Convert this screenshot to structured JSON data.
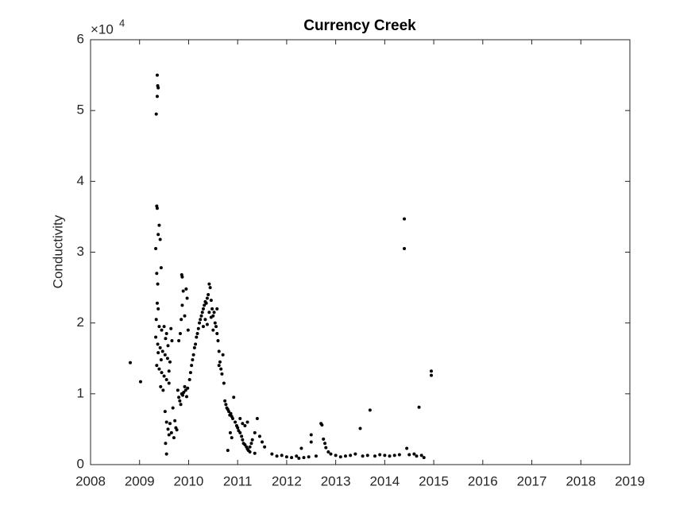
{
  "chart_data": {
    "type": "scatter",
    "title": "Currency Creek",
    "ylabel": "Conductivity",
    "y_exponent": {
      "base": "×10",
      "power": "4"
    },
    "color": "#000000",
    "xlim": [
      2008,
      2019
    ],
    "xticks": [
      2008,
      2009,
      2010,
      2011,
      2012,
      2013,
      2014,
      2015,
      2016,
      2017,
      2018,
      2019
    ],
    "ylim": [
      0,
      60000
    ],
    "yticks": [
      {
        "value": 0,
        "label": "0"
      },
      {
        "value": 10000,
        "label": "1"
      },
      {
        "value": 20000,
        "label": "2"
      },
      {
        "value": 30000,
        "label": "3"
      },
      {
        "value": 40000,
        "label": "4"
      },
      {
        "value": 50000,
        "label": "5"
      },
      {
        "value": 60000,
        "label": "6"
      }
    ],
    "x": [
      2008.81,
      2009.02,
      2009.36,
      2009.37,
      2009.38,
      2009.36,
      2009.34,
      2009.35,
      2009.36,
      2009.4,
      2009.38,
      2009.42,
      2009.33,
      2009.44,
      2009.35,
      2009.37,
      2009.36,
      2009.38,
      2009.34,
      2009.4,
      2009.45,
      2009.5,
      2009.55,
      2009.33,
      2009.37,
      2009.42,
      2009.47,
      2009.52,
      2009.57,
      2009.62,
      2009.35,
      2009.4,
      2009.45,
      2009.5,
      2009.55,
      2009.6,
      2009.43,
      2009.48,
      2009.38,
      2009.58,
      2009.64,
      2009.66,
      2009.53,
      2009.6,
      2009.44,
      2009.52,
      2009.55,
      2009.58,
      2009.6,
      2009.53,
      2009.55,
      2009.62,
      2009.65,
      2009.7,
      2009.72,
      2009.74,
      2009.76,
      2009.68,
      2009.78,
      2009.8,
      2009.82,
      2009.84,
      2009.86,
      2009.88,
      2009.9,
      2009.92,
      2009.94,
      2009.96,
      2009.98,
      2009.8,
      2009.83,
      2009.85,
      2009.87,
      2009.89,
      2009.86,
      2009.87,
      2009.95,
      2009.97,
      2009.92,
      2009.99,
      2010.02,
      2010.04,
      2010.06,
      2010.08,
      2010.1,
      2010.12,
      2010.14,
      2010.16,
      2010.18,
      2010.2,
      2010.22,
      2010.24,
      2010.26,
      2010.28,
      2010.3,
      2010.32,
      2010.34,
      2010.36,
      2010.38,
      2010.4,
      2010.42,
      2010.44,
      2010.46,
      2010.48,
      2010.5,
      2010.3,
      2010.34,
      2010.38,
      2010.42,
      2010.46,
      2010.5,
      2010.52,
      2010.54,
      2010.56,
      2010.58,
      2010.6,
      2010.62,
      2010.64,
      2010.66,
      2010.68,
      2010.58,
      2010.62,
      2010.7,
      2010.72,
      2010.74,
      2010.76,
      2010.78,
      2010.8,
      2010.82,
      2010.84,
      2010.86,
      2010.88,
      2010.9,
      2010.92,
      2010.95,
      2010.98,
      2010.85,
      2010.88,
      2010.8,
      2011.0,
      2011.02,
      2011.05,
      2011.08,
      2011.1,
      2011.12,
      2011.15,
      2011.18,
      2011.2,
      2011.22,
      2011.25,
      2011.28,
      2011.3,
      2011.05,
      2011.1,
      2011.15,
      2011.2,
      2011.35,
      2011.4,
      2011.45,
      2011.5,
      2011.25,
      2011.35,
      2011.55,
      2011.7,
      2011.8,
      2011.9,
      2012.0,
      2012.1,
      2012.2,
      2012.25,
      2012.35,
      2012.3,
      2012.45,
      2012.5,
      2012.5,
      2012.6,
      2012.7,
      2012.72,
      2012.75,
      2012.78,
      2012.8,
      2012.85,
      2012.9,
      2013.0,
      2013.1,
      2013.2,
      2013.3,
      2013.4,
      2013.5,
      2013.55,
      2013.65,
      2013.7,
      2013.8,
      2013.9,
      2014.0,
      2014.1,
      2014.2,
      2014.3,
      2014.4,
      2014.4,
      2014.45,
      2014.5,
      2014.6,
      2014.65,
      2014.7,
      2014.75,
      2014.8,
      2014.95,
      2014.95
    ],
    "values": [
      14400,
      11700,
      55000,
      53500,
      53200,
      52000,
      49500,
      36500,
      36200,
      33800,
      32500,
      31800,
      30500,
      27800,
      27000,
      25500,
      22800,
      22000,
      20500,
      19500,
      19000,
      19500,
      18500,
      18000,
      17000,
      16500,
      16000,
      15500,
      15000,
      14500,
      14000,
      13500,
      13000,
      12500,
      12000,
      11500,
      11000,
      10500,
      15800,
      16800,
      19200,
      17500,
      17800,
      13200,
      14800,
      7500,
      6000,
      5000,
      4200,
      3000,
      1500,
      5800,
      4500,
      3800,
      6200,
      5200,
      4900,
      8000,
      10500,
      9500,
      9000,
      8500,
      10000,
      9800,
      10200,
      11000,
      10500,
      9600,
      10800,
      17500,
      18500,
      20500,
      22500,
      24500,
      26800,
      26500,
      24800,
      23500,
      21000,
      19000,
      12000,
      13000,
      14000,
      14800,
      15500,
      16500,
      17000,
      18000,
      18500,
      19200,
      20000,
      20500,
      21000,
      21500,
      22000,
      22500,
      23000,
      22800,
      23500,
      24000,
      25500,
      25000,
      23200,
      22000,
      21000,
      19500,
      20500,
      19800,
      21500,
      20800,
      19000,
      21500,
      20000,
      19500,
      18500,
      17500,
      16000,
      14500,
      13500,
      12800,
      22000,
      14000,
      15500,
      11500,
      9000,
      8500,
      8000,
      7800,
      7500,
      7000,
      7200,
      6800,
      6500,
      9500,
      6000,
      5500,
      4500,
      3800,
      2000,
      5200,
      4800,
      4500,
      4000,
      3500,
      3000,
      2800,
      2500,
      2200,
      2000,
      2500,
      3000,
      3500,
      6500,
      5800,
      5500,
      6000,
      4500,
      6500,
      4000,
      3200,
      1800,
      1600,
      2500,
      1500,
      1200,
      1300,
      1100,
      1000,
      1200,
      900,
      1000,
      2300,
      1100,
      3200,
      4200,
      1200,
      5800,
      5600,
      3600,
      3000,
      2400,
      1800,
      1500,
      1300,
      1100,
      1200,
      1300,
      1500,
      5100,
      1200,
      1300,
      7700,
      1200,
      1400,
      1300,
      1200,
      1300,
      1400,
      34700,
      30500,
      2300,
      1400,
      1500,
      1200,
      8100,
      1300,
      1000,
      13200,
      12600
    ]
  }
}
